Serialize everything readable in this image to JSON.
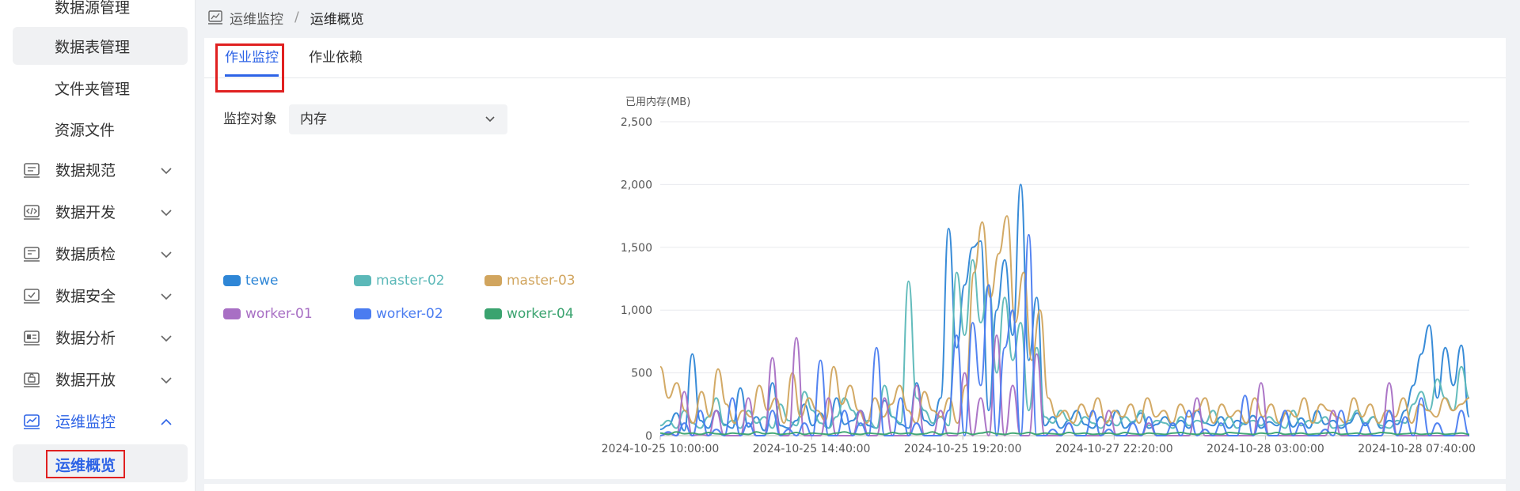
{
  "sidebar": {
    "sub_items_top": [
      {
        "label": "数据源管理"
      },
      {
        "label": "数据表管理"
      },
      {
        "label": "文件夹管理"
      },
      {
        "label": "资源文件"
      }
    ],
    "menus": [
      {
        "label": "数据规范",
        "icon": "data-standard-icon"
      },
      {
        "label": "数据开发",
        "icon": "data-dev-icon"
      },
      {
        "label": "数据质检",
        "icon": "data-quality-icon"
      },
      {
        "label": "数据安全",
        "icon": "data-security-icon"
      },
      {
        "label": "数据分析",
        "icon": "data-analysis-icon"
      },
      {
        "label": "数据开放",
        "icon": "data-open-icon"
      },
      {
        "label": "运维监控",
        "icon": "ops-monitor-icon"
      }
    ],
    "active_sub": "运维概览"
  },
  "breadcrumb": {
    "parent": "运维监控",
    "separator": "/",
    "current": "运维概览"
  },
  "tabs": [
    {
      "label": "作业监控"
    },
    {
      "label": "作业依赖"
    }
  ],
  "filter": {
    "label": "监控对象",
    "value": "内存"
  },
  "legend": [
    {
      "name": "tewe",
      "color": "#2e86d6"
    },
    {
      "name": "master-02",
      "color": "#5bb8b8"
    },
    {
      "name": "master-03",
      "color": "#d1a55e"
    },
    {
      "name": "worker-01",
      "color": "#a86fc4"
    },
    {
      "name": "worker-02",
      "color": "#4a7cf0"
    },
    {
      "name": "worker-04",
      "color": "#3aa36f"
    }
  ],
  "colors": {
    "accent": "#2d63e6",
    "highlight_box": "#e02020"
  },
  "chart_data": {
    "type": "line",
    "ylabel": "已用内存(MB)",
    "ylim": [
      0,
      2500
    ],
    "yticks": [
      "0",
      "500",
      "1,000",
      "1,500",
      "2,000",
      "2,500"
    ],
    "xticks": [
      "2024-10-25 10:00:00",
      "2024-10-25 14:40:00",
      "2024-10-25 19:20:00",
      "2024-10-27 22:20:00",
      "2024-10-28 03:00:00",
      "2024-10-28 07:40:00"
    ],
    "grid": true,
    "series": [
      {
        "name": "tewe",
        "values": [
          50,
          80,
          180,
          40,
          650,
          120,
          60,
          200,
          90,
          60,
          380,
          70,
          150,
          40,
          420,
          80,
          60,
          120,
          250,
          80,
          180,
          60,
          300,
          90,
          120,
          200,
          80,
          60,
          280,
          150,
          90,
          60,
          420,
          120,
          80,
          300,
          1650,
          700,
          1200,
          1500,
          1550,
          200,
          1000,
          1400,
          800,
          2000,
          600,
          1100,
          80,
          150,
          60,
          120,
          200,
          90,
          60,
          150,
          80,
          200,
          60,
          110,
          180,
          60,
          90,
          150,
          80,
          120,
          60,
          200,
          100,
          80,
          150,
          60,
          120,
          90,
          160,
          60,
          110,
          80,
          180,
          70,
          140,
          60,
          200,
          90,
          120,
          60,
          100,
          180,
          80,
          150,
          60,
          120,
          90,
          200,
          400,
          650,
          880,
          300,
          700,
          400,
          720,
          150
        ]
      },
      {
        "name": "master-02",
        "values": [
          80,
          120,
          60,
          200,
          100,
          60,
          150,
          300,
          80,
          120,
          60,
          200,
          100,
          150,
          60,
          250,
          120,
          80,
          350,
          200,
          100,
          60,
          150,
          300,
          200,
          80,
          120,
          60,
          400,
          150,
          100,
          1230,
          300,
          200,
          100,
          150,
          80,
          1300,
          800,
          1400,
          900,
          1200,
          500,
          1100,
          600,
          900,
          200,
          700,
          150,
          100,
          200,
          120,
          80,
          150,
          100,
          60,
          120,
          80,
          150,
          100,
          200,
          80,
          120,
          100,
          60,
          150,
          80,
          120,
          100,
          200,
          80,
          150,
          60,
          100,
          120,
          80,
          150,
          100,
          60,
          200,
          80,
          120,
          100,
          150,
          60,
          80,
          120,
          200,
          100,
          150,
          80,
          60,
          120,
          100,
          250,
          350,
          200,
          450,
          300,
          200,
          550,
          300
        ]
      },
      {
        "name": "master-03",
        "values": [
          550,
          300,
          420,
          200,
          100,
          350,
          150,
          530,
          250,
          100,
          200,
          150,
          400,
          200,
          300,
          100,
          500,
          150,
          300,
          200,
          120,
          550,
          250,
          400,
          200,
          100,
          300,
          150,
          250,
          400,
          200,
          100,
          350,
          200,
          150,
          300,
          100,
          400,
          1300,
          1700,
          1100,
          1450,
          1750,
          900,
          1300,
          600,
          1000,
          300,
          150,
          200,
          100,
          250,
          150,
          300,
          100,
          200,
          150,
          250,
          100,
          300,
          150,
          200,
          100,
          250,
          150,
          200,
          300,
          100,
          250,
          150,
          200,
          100,
          300,
          150,
          250,
          100,
          200,
          150,
          300,
          100,
          250,
          200,
          150,
          100,
          300,
          150,
          250,
          100,
          200,
          150,
          300,
          100,
          250,
          200,
          150,
          300,
          200,
          250,
          300
        ]
      },
      {
        "name": "worker-01",
        "values": [
          0,
          20,
          0,
          350,
          0,
          10,
          0,
          200,
          0,
          0,
          0,
          300,
          0,
          0,
          620,
          0,
          0,
          780,
          0,
          0,
          0,
          300,
          0,
          0,
          0,
          200,
          0,
          0,
          300,
          0,
          0,
          0,
          400,
          0,
          0,
          200,
          0,
          0,
          500,
          0,
          300,
          0,
          800,
          0,
          400,
          0,
          0,
          650,
          0,
          0,
          0,
          100,
          0,
          0,
          0,
          0,
          200,
          0,
          0,
          0,
          0,
          100,
          0,
          0,
          0,
          0,
          0,
          300,
          0,
          0,
          0,
          0,
          0,
          0,
          0,
          420,
          0,
          0,
          0,
          0,
          0,
          0,
          0,
          0,
          200,
          0,
          0,
          0,
          0,
          0,
          0,
          420,
          0,
          0,
          0,
          0,
          0,
          0,
          0,
          0,
          0,
          0
        ]
      },
      {
        "name": "worker-02",
        "values": [
          0,
          30,
          0,
          100,
          0,
          200,
          0,
          50,
          0,
          300,
          0,
          100,
          0,
          0,
          200,
          0,
          50,
          0,
          100,
          0,
          600,
          0,
          0,
          200,
          0,
          100,
          0,
          700,
          0,
          0,
          300,
          0,
          100,
          0,
          0,
          0,
          200,
          800,
          0,
          900,
          400,
          1200,
          0,
          700,
          1000,
          0,
          1600,
          0,
          0,
          50,
          0,
          100,
          0,
          0,
          200,
          0,
          50,
          0,
          0,
          100,
          0,
          150,
          0,
          0,
          100,
          0,
          200,
          0,
          50,
          0,
          100,
          0,
          0,
          320,
          0,
          150,
          0,
          0,
          200,
          0,
          100,
          0,
          0,
          50,
          0,
          200,
          0,
          0,
          100,
          0,
          0,
          200,
          0,
          150,
          0,
          300,
          0,
          100,
          0,
          0,
          200,
          0
        ]
      },
      {
        "name": "worker-04",
        "values": [
          20,
          10,
          30,
          15,
          20,
          10,
          25,
          15,
          10,
          20,
          15,
          10,
          30,
          15,
          20,
          10,
          15,
          25,
          10,
          20,
          15,
          10,
          20,
          30,
          15,
          10,
          20,
          15,
          10,
          25,
          15,
          20,
          10,
          15,
          30,
          10,
          20,
          15,
          25,
          10,
          20,
          30,
          15,
          10,
          20,
          15,
          25,
          10,
          20,
          15,
          10,
          25,
          15,
          20,
          10,
          15,
          20,
          10,
          25,
          15,
          10,
          20,
          15,
          10,
          20,
          25,
          15,
          10,
          20,
          15,
          10,
          25,
          20,
          15,
          10,
          20,
          15,
          25,
          10,
          15,
          20,
          10,
          15,
          20,
          25,
          10,
          15,
          20,
          10,
          15,
          25,
          20,
          10,
          15,
          20,
          10,
          15,
          20,
          10,
          15,
          20,
          10
        ]
      }
    ]
  }
}
